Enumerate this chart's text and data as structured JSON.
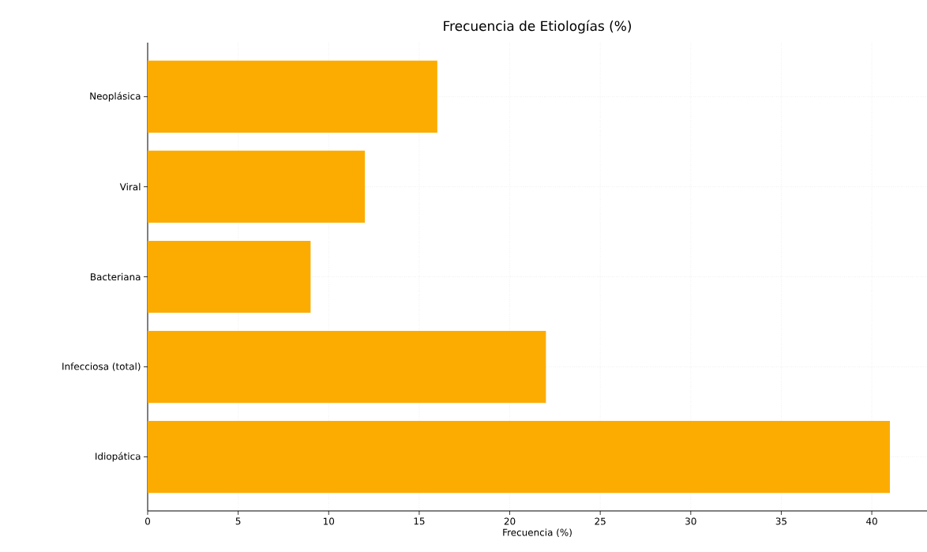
{
  "chart_data": {
    "type": "bar",
    "orientation": "horizontal",
    "title": "Frecuencia de Etiologías (%)",
    "xlabel": "Frecuencia (%)",
    "categories": [
      "Neoplásica",
      "Viral",
      "Bacteriana",
      "Infecciosa (total)",
      "Idiopática"
    ],
    "values": [
      16,
      12,
      9,
      22,
      41
    ],
    "color": "#fcac00",
    "xlim": [
      0,
      43.05
    ],
    "xticks": [
      0,
      5,
      10,
      15,
      20,
      25,
      30,
      35,
      40
    ],
    "grid": true
  }
}
